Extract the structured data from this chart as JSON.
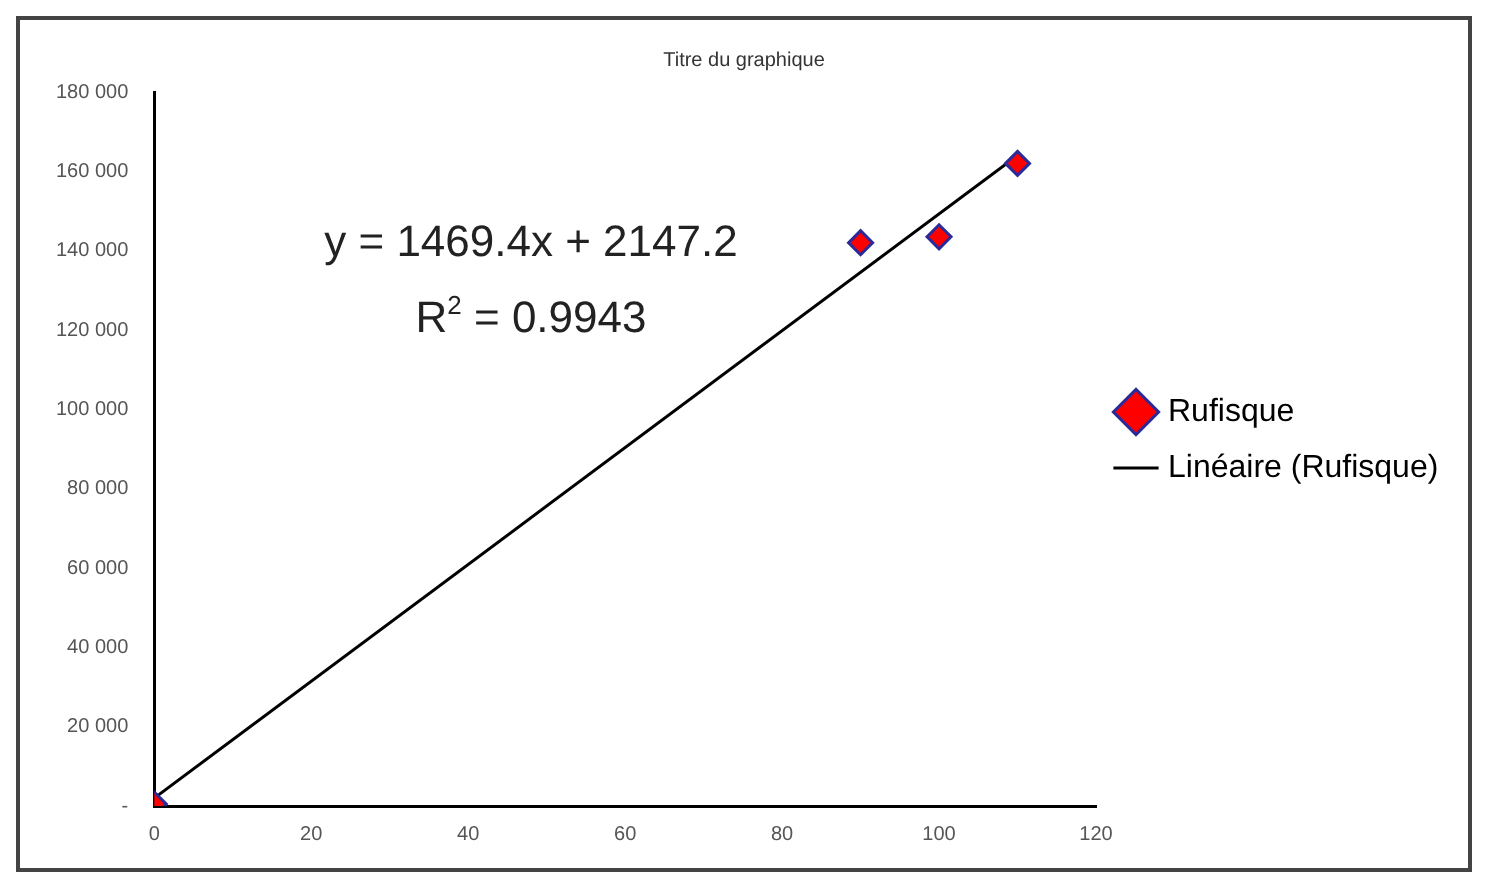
{
  "chart_data": {
    "type": "scatter",
    "title": "Titre du graphique",
    "series": [
      {
        "name": "Rufisque",
        "type": "scatter",
        "color": "#ff0000",
        "x": [
          0,
          90,
          100,
          110
        ],
        "values": [
          500,
          142000,
          143500,
          162000
        ],
        "marker": "diamond"
      },
      {
        "name": "Linéaire (Rufisque)",
        "type": "line",
        "color": "#000000",
        "x": [
          0,
          110
        ],
        "values": [
          2000,
          164000
        ],
        "marker": "none",
        "line_style": "solid"
      }
    ],
    "xlim": [
      0,
      120
    ],
    "xticks": [
      0,
      20,
      40,
      60,
      80,
      100,
      120
    ],
    "ylim": [
      0,
      180000
    ],
    "yticks": [
      {
        "value": 0,
        "label": "-"
      },
      {
        "value": 20000,
        "label": "20 000"
      },
      {
        "value": 40000,
        "label": "40 000"
      },
      {
        "value": 60000,
        "label": "60 000"
      },
      {
        "value": 80000,
        "label": "80 000"
      },
      {
        "value": 100000,
        "label": "100 000"
      },
      {
        "value": 120000,
        "label": "120 000"
      },
      {
        "value": 140000,
        "label": "140 000"
      },
      {
        "value": 160000,
        "label": "160 000"
      },
      {
        "value": 180000,
        "label": "180 000"
      }
    ],
    "annotations": [
      "y = 1469.4x + 2147.2",
      "R$^{2}$ = 0.9943"
    ],
    "grid": false,
    "legend": "right"
  }
}
